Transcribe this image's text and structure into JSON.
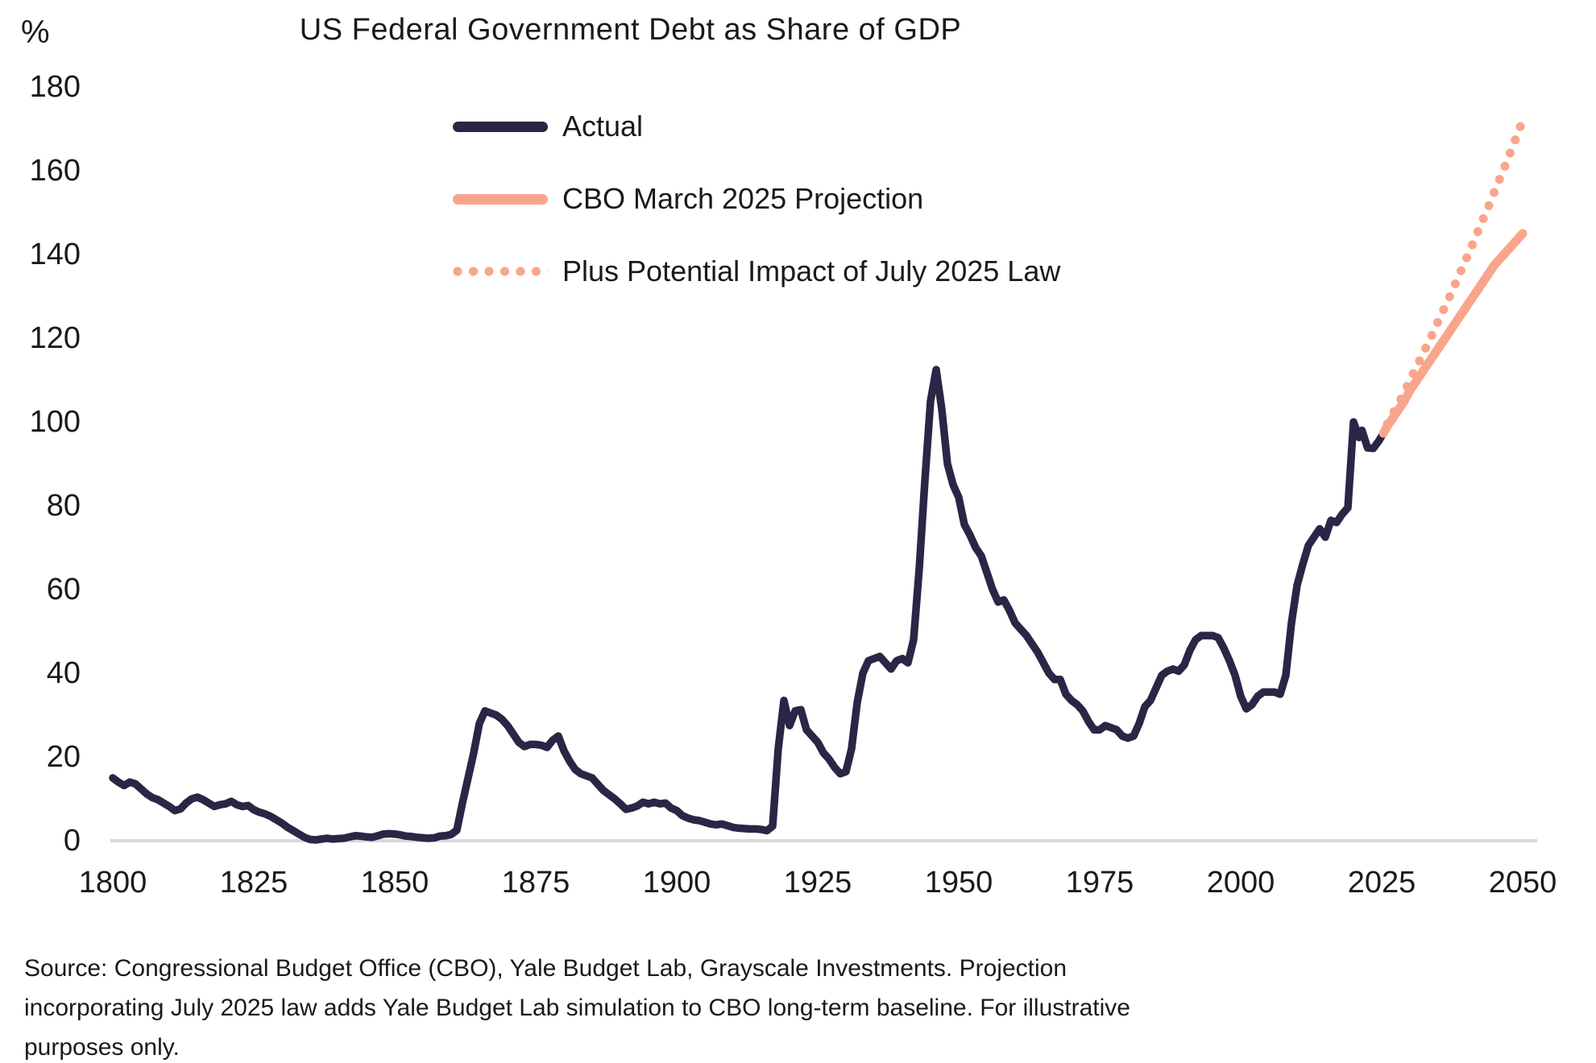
{
  "title": "US Federal Government Debt as Share of GDP",
  "y_axis": {
    "unit": "%",
    "ticks": [
      0,
      20,
      40,
      60,
      80,
      100,
      120,
      140,
      160,
      180
    ]
  },
  "x_axis": {
    "ticks": [
      1800,
      1825,
      1850,
      1875,
      1900,
      1925,
      1950,
      1975,
      2000,
      2025,
      2050
    ]
  },
  "legend": {
    "items": [
      {
        "id": "actual",
        "label": "Actual",
        "color": "#2B2546",
        "style": "solid"
      },
      {
        "id": "cbo-march-2025-projection",
        "label": "CBO March 2025 Projection",
        "color": "#F9A58C",
        "style": "solid"
      },
      {
        "id": "july-2025-law-impact",
        "label": "Plus Potential Impact of July 2025 Law",
        "color": "#F9A58C",
        "style": "dotted"
      }
    ]
  },
  "footer": {
    "lines": [
      "Source: Congressional Budget Office (CBO), Yale Budget Lab, Grayscale Investments. Projection",
      "incorporating July 2025 law adds Yale Budget Lab simulation to CBO long-term baseline. For illustrative",
      "purposes only."
    ]
  },
  "colors": {
    "actual_line": "#2B2546",
    "projection_line": "#F9A58C",
    "baseline_grid": "#D8D8D8",
    "text": "#1a1a1a",
    "background": "#ffffff"
  },
  "chart_data": {
    "type": "line",
    "title": "US Federal Government Debt as Share of GDP",
    "xlabel": "",
    "ylabel": "%",
    "xlim": [
      1800,
      2050
    ],
    "ylim": [
      0,
      180
    ],
    "grid": "zero-baseline-only",
    "legend_position": "top-center",
    "series": [
      {
        "id": "actual",
        "name": "Actual",
        "style": "solid",
        "color": "#2B2546",
        "points": [
          [
            1800,
            15
          ],
          [
            1801,
            14
          ],
          [
            1802,
            13.2
          ],
          [
            1803,
            14
          ],
          [
            1804,
            13.6
          ],
          [
            1805,
            12.4
          ],
          [
            1806,
            11.2
          ],
          [
            1807,
            10.3
          ],
          [
            1808,
            9.8
          ],
          [
            1809,
            9
          ],
          [
            1810,
            8.2
          ],
          [
            1811,
            7.2
          ],
          [
            1812,
            7.6
          ],
          [
            1813,
            9
          ],
          [
            1814,
            10
          ],
          [
            1815,
            10.4
          ],
          [
            1816,
            9.8
          ],
          [
            1817,
            9
          ],
          [
            1818,
            8.2
          ],
          [
            1819,
            8.6
          ],
          [
            1820,
            8.8
          ],
          [
            1821,
            9.4
          ],
          [
            1822,
            8.6
          ],
          [
            1823,
            8.2
          ],
          [
            1824,
            8.4
          ],
          [
            1825,
            7.4
          ],
          [
            1826,
            6.8
          ],
          [
            1827,
            6.4
          ],
          [
            1828,
            5.8
          ],
          [
            1829,
            5
          ],
          [
            1830,
            4.2
          ],
          [
            1831,
            3.2
          ],
          [
            1832,
            2.4
          ],
          [
            1833,
            1.6
          ],
          [
            1834,
            0.8
          ],
          [
            1835,
            0.3
          ],
          [
            1836,
            0.2
          ],
          [
            1837,
            0.4
          ],
          [
            1838,
            0.6
          ],
          [
            1839,
            0.4
          ],
          [
            1840,
            0.5
          ],
          [
            1841,
            0.6
          ],
          [
            1842,
            0.9
          ],
          [
            1843,
            1.2
          ],
          [
            1844,
            1.1
          ],
          [
            1845,
            0.9
          ],
          [
            1846,
            0.8
          ],
          [
            1847,
            1.2
          ],
          [
            1848,
            1.6
          ],
          [
            1849,
            1.7
          ],
          [
            1850,
            1.6
          ],
          [
            1851,
            1.4
          ],
          [
            1852,
            1.1
          ],
          [
            1853,
            1
          ],
          [
            1854,
            0.8
          ],
          [
            1855,
            0.7
          ],
          [
            1856,
            0.6
          ],
          [
            1857,
            0.7
          ],
          [
            1858,
            1.1
          ],
          [
            1859,
            1.2
          ],
          [
            1860,
            1.5
          ],
          [
            1861,
            2.5
          ],
          [
            1862,
            9
          ],
          [
            1863,
            15
          ],
          [
            1864,
            21
          ],
          [
            1865,
            28
          ],
          [
            1866,
            31
          ],
          [
            1867,
            30.5
          ],
          [
            1868,
            30
          ],
          [
            1869,
            29
          ],
          [
            1870,
            27.5
          ],
          [
            1871,
            25.5
          ],
          [
            1872,
            23.5
          ],
          [
            1873,
            22.5
          ],
          [
            1874,
            23
          ],
          [
            1875,
            23
          ],
          [
            1876,
            22.8
          ],
          [
            1877,
            22.3
          ],
          [
            1878,
            24
          ],
          [
            1879,
            25
          ],
          [
            1880,
            21.5
          ],
          [
            1881,
            19
          ],
          [
            1882,
            17
          ],
          [
            1883,
            16
          ],
          [
            1884,
            15.5
          ],
          [
            1885,
            15
          ],
          [
            1886,
            13.5
          ],
          [
            1887,
            12
          ],
          [
            1888,
            11
          ],
          [
            1889,
            10
          ],
          [
            1890,
            8.8
          ],
          [
            1891,
            7.5
          ],
          [
            1892,
            7.8
          ],
          [
            1893,
            8.3
          ],
          [
            1894,
            9.2
          ],
          [
            1895,
            8.8
          ],
          [
            1896,
            9.2
          ],
          [
            1897,
            8.8
          ],
          [
            1898,
            9
          ],
          [
            1899,
            7.8
          ],
          [
            1900,
            7.2
          ],
          [
            1901,
            6
          ],
          [
            1902,
            5.4
          ],
          [
            1903,
            5
          ],
          [
            1904,
            4.8
          ],
          [
            1905,
            4.4
          ],
          [
            1906,
            4
          ],
          [
            1907,
            3.8
          ],
          [
            1908,
            4
          ],
          [
            1909,
            3.6
          ],
          [
            1910,
            3.2
          ],
          [
            1911,
            3
          ],
          [
            1912,
            2.9
          ],
          [
            1913,
            2.8
          ],
          [
            1914,
            2.8
          ],
          [
            1915,
            2.7
          ],
          [
            1916,
            2.4
          ],
          [
            1917,
            3.5
          ],
          [
            1918,
            22
          ],
          [
            1919,
            33.5
          ],
          [
            1920,
            27.5
          ],
          [
            1921,
            31
          ],
          [
            1922,
            31.3
          ],
          [
            1923,
            26.5
          ],
          [
            1924,
            25
          ],
          [
            1925,
            23.5
          ],
          [
            1926,
            21
          ],
          [
            1927,
            19.5
          ],
          [
            1928,
            17.5
          ],
          [
            1929,
            16
          ],
          [
            1930,
            16.5
          ],
          [
            1931,
            22
          ],
          [
            1932,
            33
          ],
          [
            1933,
            40
          ],
          [
            1934,
            43
          ],
          [
            1935,
            43.5
          ],
          [
            1936,
            44
          ],
          [
            1937,
            42.5
          ],
          [
            1938,
            41
          ],
          [
            1939,
            43
          ],
          [
            1940,
            43.5
          ],
          [
            1941,
            42.5
          ],
          [
            1942,
            48
          ],
          [
            1943,
            65
          ],
          [
            1944,
            86
          ],
          [
            1945,
            105
          ],
          [
            1946,
            112.5
          ],
          [
            1947,
            103
          ],
          [
            1948,
            90
          ],
          [
            1949,
            85
          ],
          [
            1950,
            82
          ],
          [
            1951,
            75.5
          ],
          [
            1952,
            73
          ],
          [
            1953,
            70
          ],
          [
            1954,
            68
          ],
          [
            1955,
            64
          ],
          [
            1956,
            60
          ],
          [
            1957,
            57
          ],
          [
            1958,
            57.5
          ],
          [
            1959,
            55
          ],
          [
            1960,
            52
          ],
          [
            1961,
            50.5
          ],
          [
            1962,
            49
          ],
          [
            1963,
            47
          ],
          [
            1964,
            45
          ],
          [
            1965,
            42.5
          ],
          [
            1966,
            40
          ],
          [
            1967,
            38.5
          ],
          [
            1968,
            38.5
          ],
          [
            1969,
            35
          ],
          [
            1970,
            33.5
          ],
          [
            1971,
            32.5
          ],
          [
            1972,
            31
          ],
          [
            1973,
            28.5
          ],
          [
            1974,
            26.5
          ],
          [
            1975,
            26.5
          ],
          [
            1976,
            27.5
          ],
          [
            1977,
            27
          ],
          [
            1978,
            26.5
          ],
          [
            1979,
            25
          ],
          [
            1980,
            24.5
          ],
          [
            1981,
            25
          ],
          [
            1982,
            28
          ],
          [
            1983,
            32
          ],
          [
            1984,
            33.5
          ],
          [
            1985,
            36.5
          ],
          [
            1986,
            39.5
          ],
          [
            1987,
            40.5
          ],
          [
            1988,
            41
          ],
          [
            1989,
            40.5
          ],
          [
            1990,
            42
          ],
          [
            1991,
            45.5
          ],
          [
            1992,
            48
          ],
          [
            1993,
            49
          ],
          [
            1994,
            49
          ],
          [
            1995,
            49
          ],
          [
            1996,
            48.5
          ],
          [
            1997,
            46
          ],
          [
            1998,
            43
          ],
          [
            1999,
            39.5
          ],
          [
            2000,
            34.5
          ],
          [
            2001,
            31.5
          ],
          [
            2002,
            32.5
          ],
          [
            2003,
            34.5
          ],
          [
            2004,
            35.5
          ],
          [
            2005,
            35.5
          ],
          [
            2006,
            35.5
          ],
          [
            2007,
            35
          ],
          [
            2008,
            39.5
          ],
          [
            2009,
            52
          ],
          [
            2010,
            61
          ],
          [
            2011,
            66
          ],
          [
            2012,
            70.5
          ],
          [
            2013,
            72.5
          ],
          [
            2014,
            74.5
          ],
          [
            2015,
            72.5
          ],
          [
            2016,
            76.5
          ],
          [
            2017,
            76
          ],
          [
            2018,
            78
          ],
          [
            2019,
            79.5
          ],
          [
            2020,
            100
          ],
          [
            2021,
            96.3
          ],
          [
            2021.5,
            98
          ],
          [
            2022.5,
            93.8
          ],
          [
            2023.5,
            93.7
          ],
          [
            2024.5,
            95.5
          ],
          [
            2025.3,
            97.3
          ]
        ]
      },
      {
        "id": "cbo-march-2025-projection",
        "name": "CBO March 2025 Projection",
        "style": "solid",
        "color": "#F9A58C",
        "points": [
          [
            2025.3,
            97.3
          ],
          [
            2026,
            99
          ],
          [
            2027,
            101
          ],
          [
            2028,
            103
          ],
          [
            2029,
            105
          ],
          [
            2030,
            107.5
          ],
          [
            2031,
            109.5
          ],
          [
            2032,
            111.5
          ],
          [
            2033,
            113.5
          ],
          [
            2034,
            115.5
          ],
          [
            2035,
            117.5
          ],
          [
            2036,
            119.5
          ],
          [
            2037,
            121.5
          ],
          [
            2038,
            123.5
          ],
          [
            2039,
            125.5
          ],
          [
            2040,
            127.5
          ],
          [
            2041,
            129.5
          ],
          [
            2042,
            131.5
          ],
          [
            2043,
            133.5
          ],
          [
            2044,
            135.5
          ],
          [
            2045,
            137.5
          ],
          [
            2046,
            139
          ],
          [
            2047,
            140.5
          ],
          [
            2048,
            142
          ],
          [
            2049,
            143.5
          ],
          [
            2050,
            145
          ]
        ]
      },
      {
        "id": "july-2025-law-impact",
        "name": "Plus Potential Impact of July 2025 Law",
        "style": "dotted",
        "color": "#F9A58C",
        "points": [
          [
            2026,
            99.5
          ],
          [
            2027,
            102
          ],
          [
            2028,
            104.5
          ],
          [
            2029,
            107
          ],
          [
            2030,
            110
          ],
          [
            2031,
            112.7
          ],
          [
            2032,
            115.4
          ],
          [
            2033,
            118.2
          ],
          [
            2034,
            121
          ],
          [
            2035,
            124
          ],
          [
            2036,
            126.9
          ],
          [
            2037,
            129.8
          ],
          [
            2038,
            132.8
          ],
          [
            2039,
            135.9
          ],
          [
            2040,
            139
          ],
          [
            2041,
            142.1
          ],
          [
            2042,
            145.3
          ],
          [
            2043,
            148.5
          ],
          [
            2044,
            151.7
          ],
          [
            2045,
            155
          ],
          [
            2046,
            158.3
          ],
          [
            2047,
            161.6
          ],
          [
            2048,
            165
          ],
          [
            2049,
            168.5
          ],
          [
            2050,
            172
          ]
        ]
      }
    ]
  }
}
